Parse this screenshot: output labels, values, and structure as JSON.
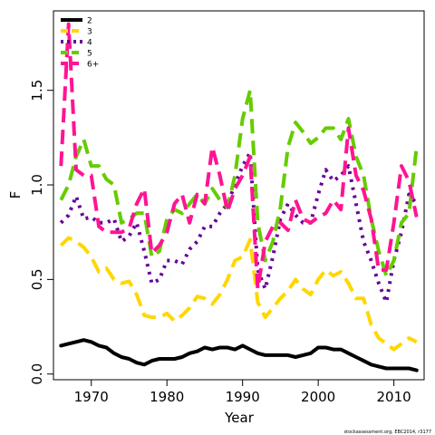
{
  "chart_data": {
    "type": "line",
    "title": "",
    "xlabel": "Year",
    "ylabel": "F",
    "xlim": [
      1965,
      2014
    ],
    "ylim": [
      -0.03,
      1.92
    ],
    "x_ticks": [
      1970,
      1980,
      1990,
      2000,
      2010
    ],
    "x_tick_labels": [
      "1970",
      "1980",
      "1990",
      "2000",
      "2010"
    ],
    "y_ticks": [
      0.0,
      0.5,
      1.0,
      1.5
    ],
    "y_tick_labels": [
      "0.0",
      "0.5",
      "1.0",
      "1.5"
    ],
    "grid": false,
    "legend_position": "top-left",
    "source_note": "stockassessment.org, EBC2014, r3177",
    "x": [
      1966,
      1967,
      1968,
      1969,
      1970,
      1971,
      1972,
      1973,
      1974,
      1975,
      1976,
      1977,
      1978,
      1979,
      1980,
      1981,
      1982,
      1983,
      1984,
      1985,
      1986,
      1987,
      1988,
      1989,
      1990,
      1991,
      1992,
      1993,
      1994,
      1995,
      1996,
      1997,
      1998,
      1999,
      2000,
      2001,
      2002,
      2003,
      2004,
      2005,
      2006,
      2007,
      2008,
      2009,
      2010,
      2011,
      2012,
      2013
    ],
    "series": [
      {
        "name": "2",
        "color": "#000000",
        "dash": "solid",
        "values": [
          0.15,
          0.16,
          0.17,
          0.18,
          0.17,
          0.15,
          0.14,
          0.11,
          0.09,
          0.08,
          0.06,
          0.05,
          0.07,
          0.08,
          0.08,
          0.08,
          0.09,
          0.11,
          0.12,
          0.14,
          0.13,
          0.14,
          0.14,
          0.13,
          0.15,
          0.13,
          0.11,
          0.1,
          0.1,
          0.1,
          0.1,
          0.09,
          0.1,
          0.11,
          0.14,
          0.14,
          0.13,
          0.13,
          0.11,
          0.09,
          0.07,
          0.05,
          0.04,
          0.03,
          0.03,
          0.03,
          0.03,
          0.02
        ]
      },
      {
        "name": "3",
        "color": "#ffd700",
        "dash": "dashed",
        "values": [
          0.68,
          0.72,
          0.7,
          0.67,
          0.62,
          0.54,
          0.56,
          0.5,
          0.48,
          0.49,
          0.42,
          0.31,
          0.3,
          0.3,
          0.32,
          0.28,
          0.31,
          0.35,
          0.41,
          0.4,
          0.37,
          0.42,
          0.5,
          0.6,
          0.62,
          0.71,
          0.38,
          0.3,
          0.35,
          0.4,
          0.44,
          0.5,
          0.45,
          0.42,
          0.5,
          0.55,
          0.52,
          0.54,
          0.48,
          0.4,
          0.4,
          0.26,
          0.19,
          0.16,
          0.13,
          0.16,
          0.19,
          0.17
        ]
      },
      {
        "name": "4",
        "color": "#660099",
        "dash": "dotted",
        "values": [
          0.8,
          0.84,
          0.94,
          0.82,
          0.83,
          0.8,
          0.8,
          0.82,
          0.7,
          0.73,
          0.8,
          0.65,
          0.48,
          0.5,
          0.6,
          0.6,
          0.58,
          0.66,
          0.7,
          0.78,
          0.78,
          0.85,
          0.9,
          1.0,
          1.1,
          1.17,
          0.55,
          0.45,
          0.62,
          0.82,
          0.9,
          0.84,
          0.8,
          0.8,
          0.95,
          1.08,
          1.02,
          1.05,
          1.1,
          0.9,
          0.7,
          0.6,
          0.48,
          0.38,
          0.6,
          0.75,
          0.95,
          0.9
        ]
      },
      {
        "name": "5",
        "color": "#66cc00",
        "dash": "dashed",
        "values": [
          0.92,
          1.0,
          1.15,
          1.24,
          1.1,
          1.1,
          1.03,
          1.0,
          0.8,
          0.82,
          0.85,
          0.85,
          0.62,
          0.65,
          0.82,
          0.87,
          0.85,
          0.9,
          0.95,
          0.9,
          0.98,
          0.92,
          0.88,
          1.05,
          1.35,
          1.5,
          0.8,
          0.6,
          0.7,
          0.88,
          1.2,
          1.33,
          1.28,
          1.22,
          1.25,
          1.3,
          1.3,
          1.24,
          1.35,
          1.15,
          1.05,
          0.82,
          0.65,
          0.52,
          0.6,
          0.8,
          0.85,
          1.2
        ]
      },
      {
        "name": "6+",
        "color": "#ff1493",
        "dash": "dashed",
        "values": [
          1.1,
          1.85,
          1.08,
          1.05,
          1.05,
          0.78,
          0.75,
          0.75,
          0.75,
          0.77,
          0.9,
          0.98,
          0.64,
          0.68,
          0.75,
          0.9,
          0.95,
          0.8,
          0.95,
          0.9,
          1.2,
          1.05,
          0.86,
          0.98,
          1.05,
          1.15,
          0.45,
          0.7,
          0.78,
          0.8,
          0.76,
          0.92,
          0.82,
          0.8,
          0.83,
          0.85,
          0.92,
          0.87,
          1.3,
          1.05,
          0.97,
          0.82,
          0.55,
          0.55,
          0.8,
          1.1,
          1.02,
          0.83
        ]
      }
    ]
  }
}
